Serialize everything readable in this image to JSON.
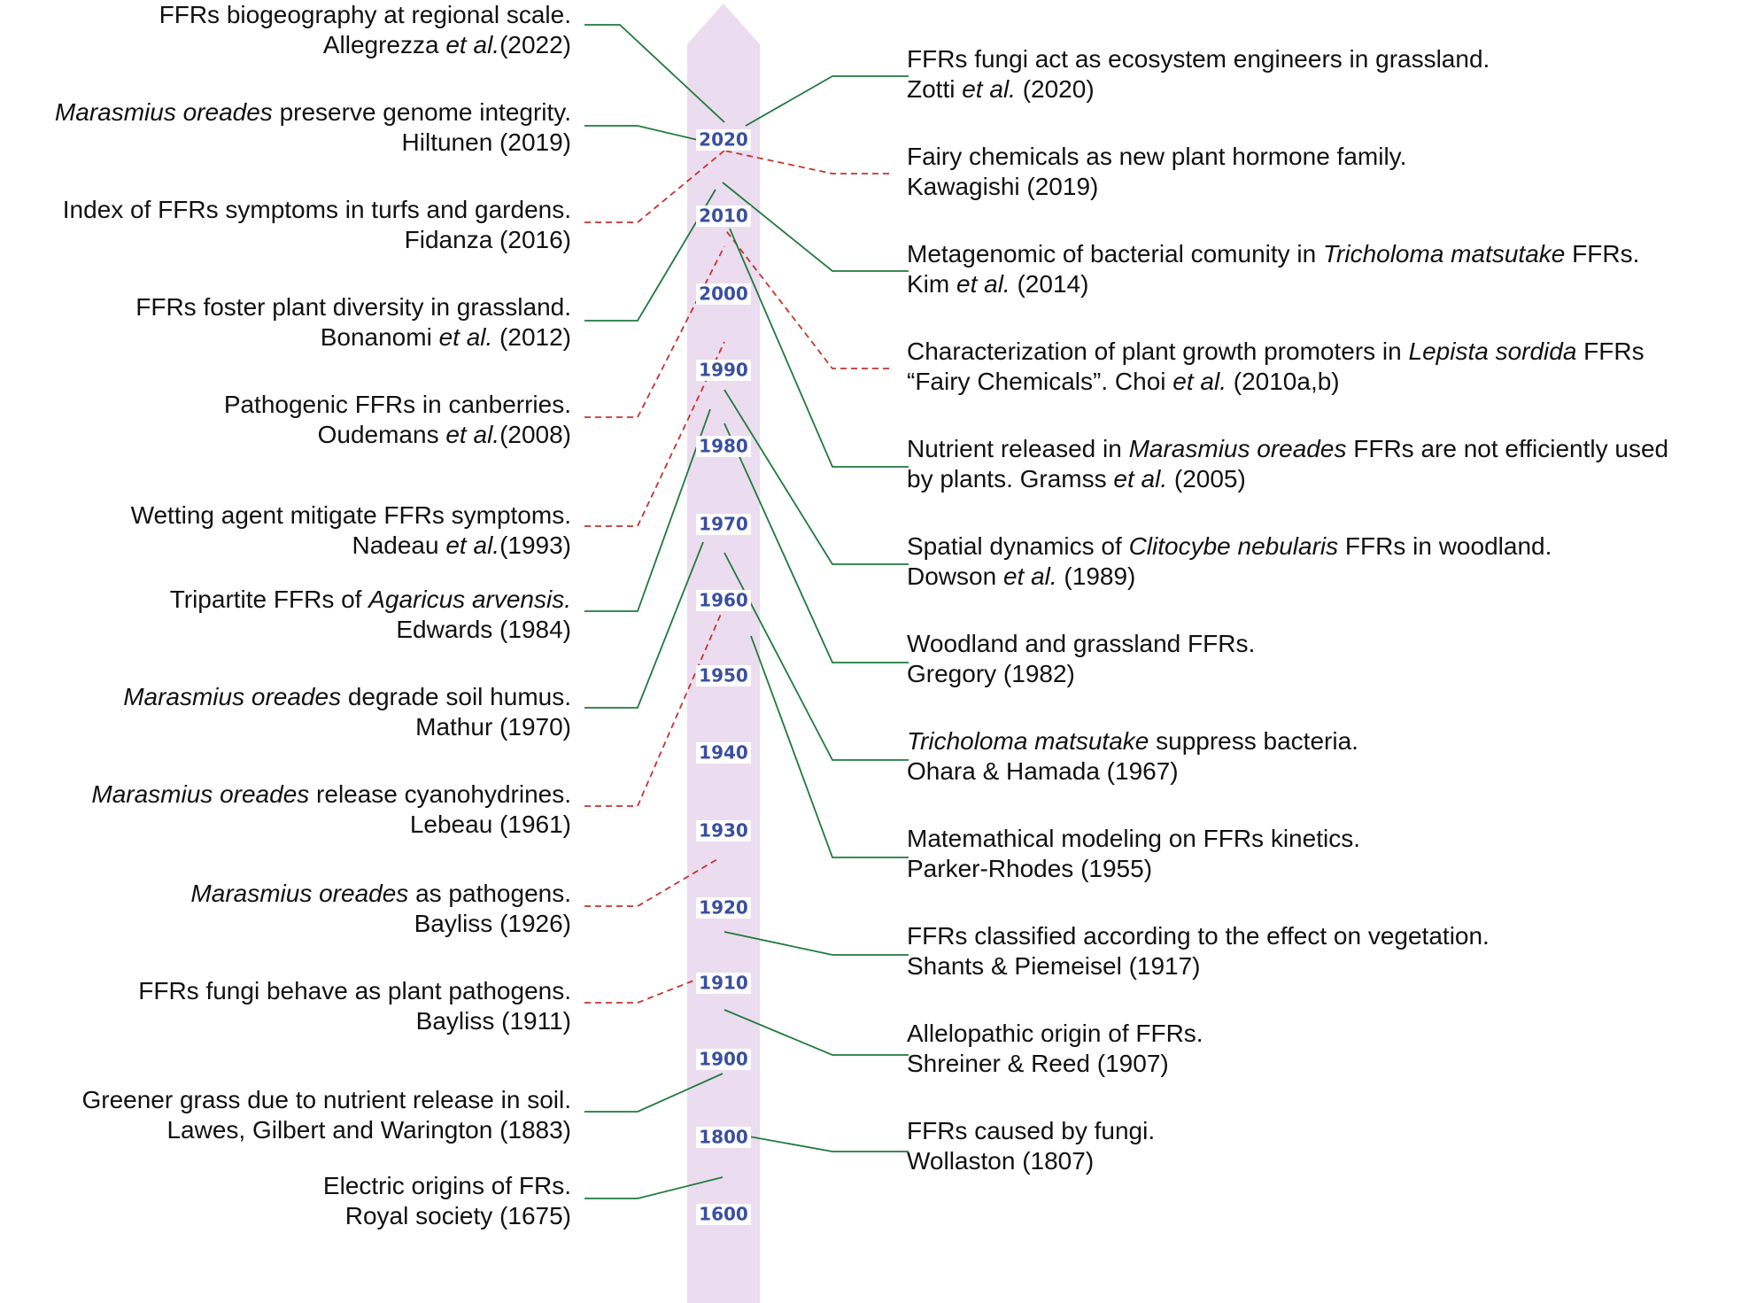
{
  "timeline": {
    "years": [
      "2020",
      "2010",
      "2000",
      "1990",
      "1980",
      "1970",
      "1960",
      "1950",
      "1940",
      "1930",
      "1920",
      "1910",
      "1900",
      "1800",
      "1600"
    ]
  },
  "events_left": [
    {
      "id": "l0",
      "line1": [
        {
          "t": "FFRs biogeography at regional scale."
        }
      ],
      "line2": [
        {
          "t": "Allegrezza "
        },
        {
          "t": "et al.",
          "i": true
        },
        {
          "t": "(2022)"
        }
      ],
      "style": "solid"
    },
    {
      "id": "l1",
      "line1": [
        {
          "t": "Marasmius oreades",
          "i": true
        },
        {
          "t": " preserve genome integrity."
        }
      ],
      "line2": [
        {
          "t": "Hiltunen (2019)"
        }
      ],
      "style": "solid"
    },
    {
      "id": "l2",
      "line1": [
        {
          "t": "Index of FFRs symptoms in turfs and gardens."
        }
      ],
      "line2": [
        {
          "t": "Fidanza (2016)"
        }
      ],
      "style": "dashed"
    },
    {
      "id": "l3",
      "line1": [
        {
          "t": "FFRs foster plant diversity in grassland."
        }
      ],
      "line2": [
        {
          "t": "Bonanomi "
        },
        {
          "t": "et al.",
          "i": true
        },
        {
          "t": " (2012)"
        }
      ],
      "style": "solid"
    },
    {
      "id": "l4",
      "line1": [
        {
          "t": "Pathogenic FFRs in canberries."
        }
      ],
      "line2": [
        {
          "t": "Oudemans "
        },
        {
          "t": "et al.",
          "i": true
        },
        {
          "t": "(2008)"
        }
      ],
      "style": "dashed"
    },
    {
      "id": "l5",
      "line1": [
        {
          "t": "Wetting agent mitigate FFRs symptoms."
        }
      ],
      "line2": [
        {
          "t": "Nadeau "
        },
        {
          "t": "et al.",
          "i": true
        },
        {
          "t": "(1993)"
        }
      ],
      "style": "dashed"
    },
    {
      "id": "l6",
      "line1": [
        {
          "t": "Tripartite FFRs of "
        },
        {
          "t": "Agaricus arvensis.",
          "i": true
        }
      ],
      "line2": [
        {
          "t": "Edwards (1984)"
        }
      ],
      "style": "solid"
    },
    {
      "id": "l7",
      "line1": [
        {
          "t": "Marasmius oreades",
          "i": true
        },
        {
          "t": "  degrade soil humus."
        }
      ],
      "line2": [
        {
          "t": "Mathur (1970)"
        }
      ],
      "style": "solid"
    },
    {
      "id": "l8",
      "line1": [
        {
          "t": "Marasmius oreades",
          "i": true
        },
        {
          "t": "  release cyanohydrines."
        }
      ],
      "line2": [
        {
          "t": "Lebeau (1961)"
        }
      ],
      "style": "dashed"
    },
    {
      "id": "l9",
      "line1": [
        {
          "t": "Marasmius oreades",
          "i": true
        },
        {
          "t": " as pathogens."
        }
      ],
      "line2": [
        {
          "t": "Bayliss (1926)"
        }
      ],
      "style": "dashed"
    },
    {
      "id": "l10",
      "line1": [
        {
          "t": "FFRs fungi behave as plant pathogens."
        }
      ],
      "line2": [
        {
          "t": "Bayliss (1911)"
        }
      ],
      "style": "dashed"
    },
    {
      "id": "l11",
      "line1": [
        {
          "t": "Greener grass due to nutrient release in soil."
        }
      ],
      "line2": [
        {
          "t": "Lawes, Gilbert and Warington (1883)"
        }
      ],
      "style": "solid"
    },
    {
      "id": "l12",
      "line1": [
        {
          "t": "Electric origins of FRs."
        }
      ],
      "line2": [
        {
          "t": "Royal society (1675)"
        }
      ],
      "style": "solid"
    }
  ],
  "events_right": [
    {
      "id": "r0",
      "line1": [
        {
          "t": "FFRs fungi act as ecosystem engineers in grassland."
        }
      ],
      "line2": [
        {
          "t": "Zotti "
        },
        {
          "t": "et al.",
          "i": true
        },
        {
          "t": " (2020)"
        }
      ],
      "style": "solid"
    },
    {
      "id": "r1",
      "line1": [
        {
          "t": "Fairy chemicals as new plant hormone family."
        }
      ],
      "line2": [
        {
          "t": "Kawagishi (2019)"
        }
      ],
      "style": "dashed"
    },
    {
      "id": "r2",
      "line1": [
        {
          "t": "Metagenomic of bacterial comunity in "
        },
        {
          "t": "Tricholoma matsutake",
          "i": true
        },
        {
          "t": " FFRs."
        }
      ],
      "line2": [
        {
          "t": "Kim "
        },
        {
          "t": "et al.",
          "i": true
        },
        {
          "t": " (2014)"
        }
      ],
      "style": "solid"
    },
    {
      "id": "r3",
      "line1": [
        {
          "t": "Characterization of plant growth promoters in "
        },
        {
          "t": "Lepista sordida",
          "i": true
        },
        {
          "t": " FFRs"
        }
      ],
      "line2": [
        {
          "t": "“Fairy Chemicals”. Choi "
        },
        {
          "t": "et al.",
          "i": true
        },
        {
          "t": " (2010a,b)"
        }
      ],
      "style": "dashed"
    },
    {
      "id": "r4",
      "line1": [
        {
          "t": "Nutrient released in "
        },
        {
          "t": "Marasmius oreades",
          "i": true
        },
        {
          "t": " FFRs are not efficiently used"
        }
      ],
      "line2": [
        {
          "t": "by plants. Gramss "
        },
        {
          "t": "et al.",
          "i": true
        },
        {
          "t": " (2005)"
        }
      ],
      "style": "solid"
    },
    {
      "id": "r5",
      "line1": [
        {
          "t": "Spatial dynamics of "
        },
        {
          "t": "Clitocybe nebularis",
          "i": true
        },
        {
          "t": " FFRs in woodland."
        }
      ],
      "line2": [
        {
          "t": "Dowson "
        },
        {
          "t": "et al.",
          "i": true
        },
        {
          "t": " (1989)"
        }
      ],
      "style": "solid"
    },
    {
      "id": "r6",
      "line1": [
        {
          "t": "Woodland and grassland FFRs."
        }
      ],
      "line2": [
        {
          "t": "Gregory (1982)"
        }
      ],
      "style": "solid"
    },
    {
      "id": "r7",
      "line1": [
        {
          "t": "Tricholoma matsutake",
          "i": true
        },
        {
          "t": " suppress bacteria."
        }
      ],
      "line2": [
        {
          "t": "Ohara & Hamada (1967)"
        }
      ],
      "style": "solid"
    },
    {
      "id": "r8",
      "line1": [
        {
          "t": "Matemathical modeling on FFRs kinetics."
        }
      ],
      "line2": [
        {
          "t": "Parker-Rhodes (1955)"
        }
      ],
      "style": "solid"
    },
    {
      "id": "r9",
      "line1": [
        {
          "t": "FFRs classified according to the effect on vegetation."
        }
      ],
      "line2": [
        {
          "t": "Shants & Piemeisel (1917)"
        }
      ],
      "style": "solid"
    },
    {
      "id": "r10",
      "line1": [
        {
          "t": "Allelopathic origin of FFRs."
        }
      ],
      "line2": [
        {
          "t": "Shreiner & Reed (1907)"
        }
      ],
      "style": "solid"
    },
    {
      "id": "r11",
      "line1": [
        {
          "t": "FFRs caused by fungi."
        }
      ],
      "line2": [
        {
          "t": "Wollaston (1807)"
        }
      ],
      "style": "solid"
    }
  ],
  "colors": {
    "arrow": "#ecdcef",
    "year_text": "#3a4fa0",
    "solid_line": "#1f7a3c",
    "dashed_line": "#c8322e",
    "text": "#111111"
  }
}
